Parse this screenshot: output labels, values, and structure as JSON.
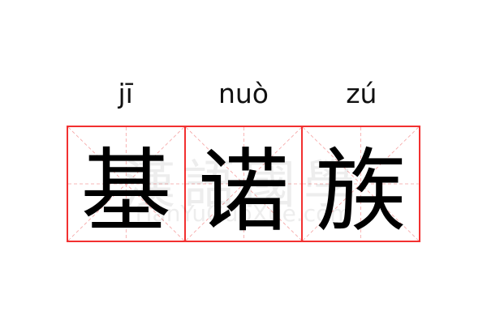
{
  "entries": [
    {
      "pinyin": "jī",
      "hanzi": "基"
    },
    {
      "pinyin": "nuò",
      "hanzi": "诺"
    },
    {
      "pinyin": "zú",
      "hanzi": "族"
    }
  ],
  "watermark": {
    "chinese": "漢語國學",
    "latin": "HanYuGuoXue.com"
  },
  "colors": {
    "border": "#f23030",
    "guide": "#f5a0a0",
    "text": "#000000"
  }
}
